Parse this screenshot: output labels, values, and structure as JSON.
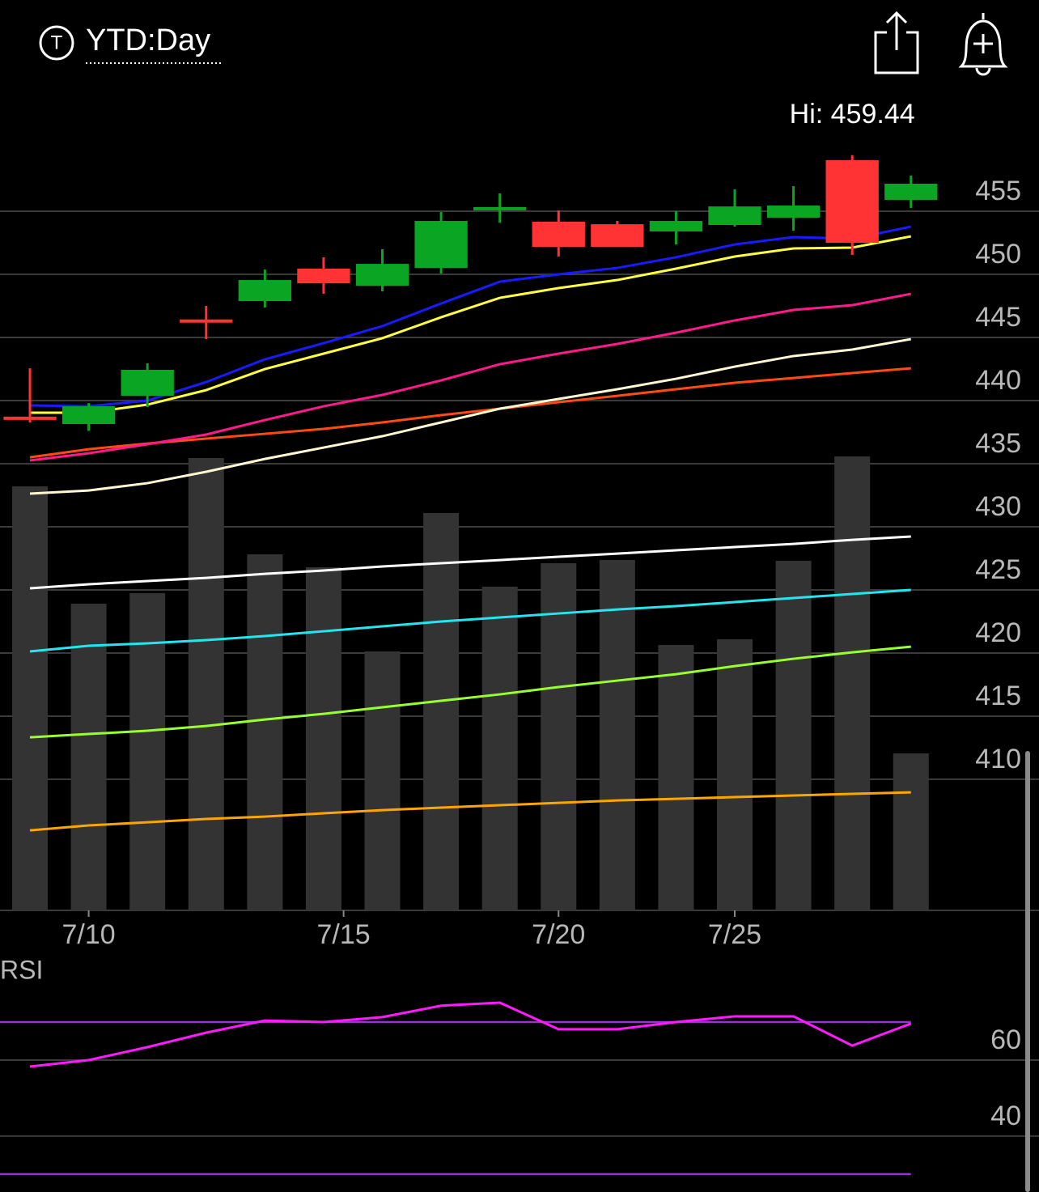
{
  "header": {
    "icon_letter": "T",
    "range_label": "YTD:Day"
  },
  "chart_data": [
    {
      "type": "candlestick",
      "x": [
        0,
        1,
        2,
        3,
        4,
        5,
        6,
        7,
        8,
        9,
        10,
        11,
        12,
        13,
        14,
        15
      ],
      "xlim": [
        -0.51,
        17.18
      ],
      "xticks": [
        {
          "value": 1,
          "label": "7/10"
        },
        {
          "value": 5.34,
          "label": "7/15"
        },
        {
          "value": 9,
          "label": "7/20"
        },
        {
          "value": 12,
          "label": "7/25"
        }
      ],
      "ylim": [
        399.62,
        464.68
      ],
      "yticks": [
        410,
        415,
        420,
        425,
        430,
        435,
        440,
        445,
        450,
        455
      ],
      "grid": true,
      "open": [
        438.6,
        438.14,
        440.38,
        446.3,
        447.88,
        450.45,
        449.1,
        450.51,
        455.1,
        454.17,
        453.97,
        453.4,
        453.91,
        454.49,
        459.04,
        455.9
      ],
      "high": [
        442.56,
        439.8,
        442.95,
        447.5,
        450.38,
        451.35,
        451.99,
        454.94,
        456.41,
        455.06,
        454.23,
        455.0,
        456.73,
        456.99,
        459.44,
        457.82
      ],
      "low": [
        438.27,
        437.6,
        439.49,
        444.87,
        447.37,
        448.46,
        448.65,
        450.06,
        454.1,
        451.41,
        452.18,
        452.37,
        453.78,
        453.46,
        451.54,
        455.26
      ],
      "close": [
        438.5,
        439.55,
        442.44,
        446.2,
        449.55,
        449.29,
        450.83,
        454.23,
        455.2,
        452.18,
        452.18,
        454.23,
        455.38,
        455.45,
        452.5,
        457.18
      ],
      "up_color": "#0aa522",
      "down_color": "#ff3333",
      "volume": {
        "color": "#333333",
        "ylim": [
          0,
          120
        ],
        "values": [
          104.8,
          75.8,
          78.4,
          111.8,
          88,
          84.8,
          64,
          98.2,
          80,
          85.8,
          86.6,
          65.6,
          67,
          86.4,
          112.2,
          38.8
        ]
      },
      "series": [
        {
          "color": "#ffa500",
          "values": [
            405.96,
            406.35,
            406.6,
            406.86,
            407.05,
            407.31,
            407.56,
            407.76,
            407.95,
            408.14,
            408.33,
            408.46,
            408.59,
            408.72,
            408.85,
            408.97
          ]
        },
        {
          "color": "#9aff2e",
          "values": [
            413.33,
            413.59,
            413.85,
            414.23,
            414.74,
            415.19,
            415.71,
            416.22,
            416.73,
            417.31,
            417.82,
            418.33,
            418.97,
            419.55,
            420.06,
            420.51
          ]
        },
        {
          "color": "#22e6f0",
          "values": [
            420.13,
            420.58,
            420.77,
            421.03,
            421.35,
            421.73,
            422.12,
            422.5,
            422.82,
            423.14,
            423.46,
            423.72,
            424.04,
            424.36,
            424.68,
            425.0
          ]
        },
        {
          "color": "#ffffff",
          "values": [
            425.13,
            425.45,
            425.71,
            425.96,
            426.28,
            426.54,
            426.86,
            427.12,
            427.37,
            427.63,
            427.88,
            428.14,
            428.4,
            428.65,
            428.97,
            429.23
          ]
        },
        {
          "color": "#ff4a14",
          "values": [
            435.51,
            436.15,
            436.6,
            436.99,
            437.37,
            437.76,
            438.27,
            438.85,
            439.36,
            439.87,
            440.38,
            440.9,
            441.41,
            441.79,
            442.18,
            442.56
          ]
        },
        {
          "color": "#fff8d0",
          "values": [
            432.63,
            432.88,
            433.46,
            434.36,
            435.38,
            436.28,
            437.18,
            438.27,
            439.36,
            440.13,
            440.9,
            441.73,
            442.69,
            443.53,
            444.04,
            444.87
          ]
        },
        {
          "color": "#ff1a8c",
          "values": [
            435.26,
            435.83,
            436.54,
            437.31,
            438.46,
            439.55,
            440.45,
            441.6,
            442.88,
            443.72,
            444.49,
            445.38,
            446.35,
            447.18,
            447.56,
            448.46
          ]
        },
        {
          "color": "#ffff40",
          "values": [
            439.04,
            439.04,
            439.68,
            440.83,
            442.5,
            443.72,
            444.94,
            446.6,
            448.14,
            448.91,
            449.55,
            450.45,
            451.41,
            452.05,
            452.12,
            453.01
          ]
        },
        {
          "color": "#1a1aff",
          "values": [
            439.62,
            439.55,
            440.0,
            441.47,
            443.27,
            444.55,
            445.9,
            447.69,
            449.42,
            450.0,
            450.51,
            451.35,
            452.37,
            452.95,
            452.82,
            453.78
          ]
        }
      ],
      "annotations": [
        {
          "label": "Hi: 459.44",
          "value": 459.44,
          "x": 14
        }
      ]
    },
    {
      "type": "line",
      "title": "RSI",
      "x": [
        0,
        1,
        2,
        3,
        4,
        5,
        6,
        7,
        8,
        9,
        10,
        11,
        12,
        13,
        14,
        15
      ],
      "xlim": [
        -0.51,
        17.18
      ],
      "ylim": [
        25.3,
        86.6
      ],
      "yticks": [
        40,
        60
      ],
      "grid": true,
      "levels": [
        70,
        30
      ],
      "level_color": "#9b30d9",
      "series": [
        {
          "color": "#ff1aff",
          "values": [
            58.3,
            60.0,
            63.4,
            67.2,
            70.4,
            70.0,
            71.3,
            74.3,
            75.1,
            68.1,
            68.1,
            70.0,
            71.5,
            71.5,
            63.8,
            69.6
          ]
        }
      ]
    }
  ]
}
